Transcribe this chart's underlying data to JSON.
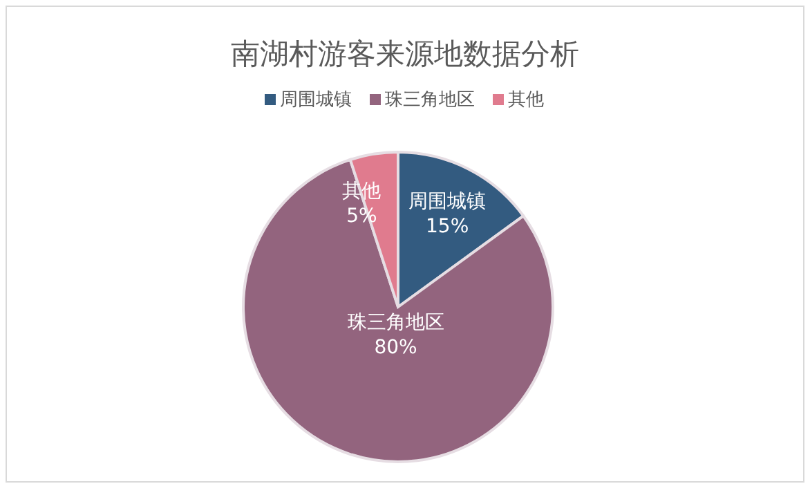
{
  "chart_data": {
    "type": "pie",
    "title": "南湖村游客来源地数据分析",
    "categories": [
      "周围城镇",
      "珠三角地区",
      "其他"
    ],
    "values": [
      15,
      80,
      5
    ],
    "colors": [
      "#335b80",
      "#93647e",
      "#e07b8e"
    ],
    "value_labels": [
      "15%",
      "80%",
      "5%"
    ],
    "legend": "top"
  }
}
